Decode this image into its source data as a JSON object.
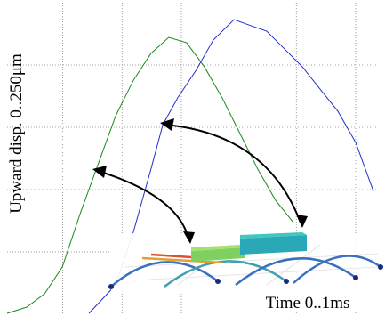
{
  "chart_data": {
    "type": "line",
    "y_label": "Upward disp. 0..250μm",
    "x_label": "Time 0..1ms",
    "xlim": [
      0,
      1
    ],
    "ylim": [
      0,
      250
    ],
    "xticks": [
      0.15,
      0.31,
      0.47,
      0.62,
      0.78,
      0.94
    ],
    "yticks": [
      50,
      100,
      150,
      200
    ],
    "grid": true,
    "series": [
      {
        "color": "#1a8a1a",
        "x": [
          0,
          0.053,
          0.101,
          0.149,
          0.197,
          0.245,
          0.293,
          0.341,
          0.388,
          0.436,
          0.484,
          0.532,
          0.58,
          0.628,
          0.676,
          0.724,
          0.772
        ],
        "values": [
          0.7,
          5.7,
          16.4,
          37.9,
          80.7,
          120,
          159.3,
          187.9,
          209.3,
          222.1,
          217.9,
          198.6,
          173.6,
          145,
          116.4,
          91.4,
          73.6
        ]
      },
      {
        "color": "#1f2fd0",
        "x": [
          0.221,
          0.293,
          0.341,
          0.388,
          0.42,
          0.46,
          0.508,
          0.556,
          0.612,
          0.652,
          0.7,
          0.748,
          0.796,
          0.844,
          0.892,
          0.94,
          0.988
        ],
        "values": [
          0.7,
          23.6,
          66.4,
          116.4,
          152.1,
          173.6,
          195,
          220,
          236.4,
          232.1,
          227.1,
          212.9,
          198.6,
          180.7,
          162.9,
          137.9,
          98.6
        ]
      }
    ]
  }
}
